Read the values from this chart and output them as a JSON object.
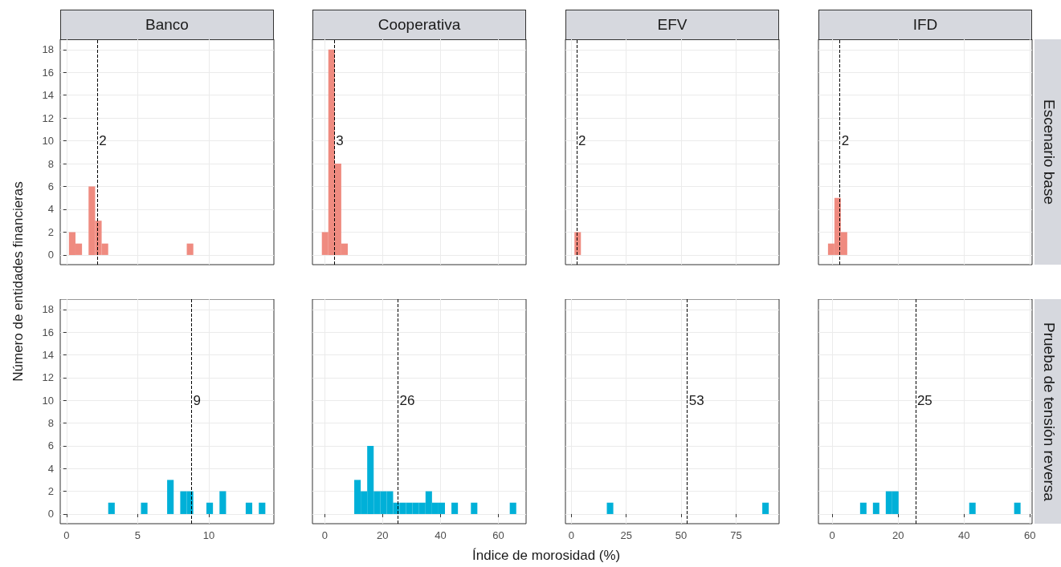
{
  "chart_data": [
    {
      "type": "histogram",
      "title": "Banco",
      "ylabel": "Número de entidades financieras",
      "color": "#ef8b80",
      "tick_labels": "y",
      "grid": true,
      "bins": [
        0.17,
        0.63,
        1.09,
        1.55,
        2.01,
        2.47,
        2.93,
        3.39,
        3.85,
        4.31,
        4.77,
        5.23,
        5.69,
        6.15,
        6.61,
        7.07,
        7.53,
        7.99,
        8.45,
        8.91,
        9.37,
        9.83,
        10.29,
        10.75,
        11.21,
        11.67,
        12.13,
        12.59,
        13.05,
        13.51,
        13.97
      ],
      "values": [
        2,
        1,
        0,
        6,
        3,
        1,
        0,
        0,
        0,
        0,
        0,
        0,
        0,
        0,
        0,
        0,
        0,
        0,
        1,
        0,
        0,
        0,
        0,
        0,
        0,
        0,
        0,
        0,
        0,
        0
      ],
      "xlim": [
        -0.44,
        14.57
      ],
      "xticks": [
        0,
        5,
        10
      ],
      "ylim": [
        -0.85,
        18.9
      ],
      "yticks": [
        0,
        2,
        4,
        6,
        8,
        10,
        12,
        14,
        16,
        18
      ],
      "ref_lines": [
        {
          "axis": "x",
          "value": 2.17,
          "line_style": "dashed",
          "color": "#000000"
        }
      ],
      "annotations": [
        {
          "text": "2",
          "x": 2.17,
          "y": 10
        }
      ]
    },
    {
      "type": "histogram",
      "title": "Cooperativa",
      "color": "#ef8b80",
      "tick_labels": false,
      "grid": true,
      "bins": [
        -1,
        1.24,
        3.48,
        5.72,
        7.96,
        10.2,
        12.44,
        14.68,
        16.92,
        19.16,
        21.4,
        23.64,
        25.88,
        28.12,
        30.36,
        32.6,
        34.84,
        37.08,
        39.32,
        41.56,
        43.8,
        46.04,
        48.28,
        50.52,
        52.76,
        55,
        57.24,
        59.48,
        61.72,
        63.96,
        66.2
      ],
      "values": [
        2,
        18,
        8,
        1,
        0,
        0,
        0,
        0,
        0,
        0,
        0,
        0,
        0,
        0,
        0,
        0,
        0,
        0,
        0,
        0,
        0,
        0,
        0,
        0,
        0,
        0,
        0,
        0,
        0,
        0
      ],
      "xlim": [
        -4.25,
        69.6
      ],
      "xticks": [
        0,
        20,
        40,
        60
      ],
      "ylim": [
        -0.85,
        18.9
      ],
      "yticks": [
        0,
        2,
        4,
        6,
        8,
        10,
        12,
        14,
        16,
        18
      ],
      "ref_lines": [
        {
          "axis": "x",
          "value": 3.3,
          "line_style": "dashed",
          "color": "#000000"
        }
      ],
      "annotations": [
        {
          "text": "3",
          "x": 3.3,
          "y": 10
        }
      ]
    },
    {
      "type": "histogram",
      "title": "EFV",
      "color": "#ef8b80",
      "tick_labels": false,
      "grid": true,
      "bins": [
        1.4,
        4.35,
        7.3,
        10.25,
        13.2,
        16.15,
        19.1,
        22.05,
        25,
        27.95,
        30.9,
        33.85,
        36.8,
        39.75,
        42.7,
        45.65,
        48.6,
        51.55,
        54.5,
        57.45,
        60.4,
        63.35,
        66.3,
        69.25,
        72.2,
        75.15,
        78.1,
        81.05,
        84,
        86.95,
        89.9
      ],
      "values": [
        2,
        0,
        0,
        0,
        0,
        0,
        0,
        0,
        0,
        0,
        0,
        0,
        0,
        0,
        0,
        0,
        0,
        0,
        0,
        0,
        0,
        0,
        0,
        0,
        0,
        0,
        0,
        0,
        0,
        0
      ],
      "xlim": [
        -2.7,
        94.6
      ],
      "xticks": [
        0,
        25,
        50,
        75
      ],
      "ylim": [
        -0.85,
        18.9
      ],
      "yticks": [
        0,
        2,
        4,
        6,
        8,
        10,
        12,
        14,
        16,
        18
      ],
      "ref_lines": [
        {
          "axis": "x",
          "value": 2.4,
          "line_style": "dashed",
          "color": "#000000"
        }
      ],
      "annotations": [
        {
          "text": "2",
          "x": 2.4,
          "y": 10
        }
      ]
    },
    {
      "type": "histogram",
      "title": "IFD",
      "y2label": "Escenario base",
      "color": "#ef8b80",
      "tick_labels": false,
      "grid": true,
      "bins": [
        -1.3,
        0.65,
        2.6,
        4.55,
        6.5,
        8.45,
        10.4,
        12.35,
        14.3,
        16.25,
        18.2,
        20.15,
        22.1,
        24.05,
        26,
        27.95,
        29.9,
        31.85,
        33.8,
        35.75,
        37.7,
        39.65,
        41.6,
        43.55,
        45.5,
        47.45,
        49.4,
        51.35,
        53.3,
        55.25,
        57.2
      ],
      "values": [
        1,
        5,
        2,
        0,
        0,
        0,
        0,
        0,
        0,
        0,
        0,
        0,
        0,
        0,
        0,
        0,
        0,
        0,
        0,
        0,
        0,
        0,
        0,
        0,
        0,
        0,
        0,
        0,
        0,
        0
      ],
      "xlim": [
        -4.2,
        60.7
      ],
      "xticks": [
        0,
        20,
        40,
        60
      ],
      "ylim": [
        -0.85,
        18.9
      ],
      "yticks": [
        0,
        2,
        4,
        6,
        8,
        10,
        12,
        14,
        16,
        18
      ],
      "ref_lines": [
        {
          "axis": "x",
          "value": 2.3,
          "line_style": "dashed",
          "color": "#000000"
        }
      ],
      "annotations": [
        {
          "text": "2",
          "x": 2.3,
          "y": 10
        }
      ]
    },
    {
      "type": "histogram",
      "color": "#00b0d8",
      "grid": true,
      "bins": [
        0.17,
        0.63,
        1.09,
        1.55,
        2.01,
        2.47,
        2.93,
        3.39,
        3.85,
        4.31,
        4.77,
        5.23,
        5.69,
        6.15,
        6.61,
        7.07,
        7.53,
        7.99,
        8.45,
        8.91,
        9.37,
        9.83,
        10.29,
        10.75,
        11.21,
        11.67,
        12.13,
        12.59,
        13.05,
        13.51,
        13.97
      ],
      "values": [
        0,
        0,
        0,
        0,
        0,
        0,
        1,
        0,
        0,
        0,
        0,
        1,
        0,
        0,
        0,
        3,
        0,
        2,
        2,
        0,
        0,
        1,
        0,
        2,
        0,
        0,
        0,
        1,
        0,
        1
      ],
      "xlim": [
        -0.44,
        14.57
      ],
      "xticks": [
        0,
        5,
        10
      ],
      "ylim": [
        -0.85,
        18.9
      ],
      "yticks": [
        0,
        2,
        4,
        6,
        8,
        10,
        12,
        14,
        16,
        18
      ],
      "ref_lines": [
        {
          "axis": "x",
          "value": 8.78,
          "line_style": "dashed",
          "color": "#000000"
        }
      ],
      "annotations": [
        {
          "text": "9",
          "x": 8.78,
          "y": 10
        }
      ]
    },
    {
      "type": "histogram",
      "xlabel": "Índice de morosidad (%)",
      "color": "#00b0d8",
      "tick_labels": "x",
      "grid": true,
      "bins": [
        -1,
        1.24,
        3.48,
        5.72,
        7.96,
        10.2,
        12.44,
        14.68,
        16.92,
        19.16,
        21.4,
        23.64,
        25.88,
        28.12,
        30.36,
        32.6,
        34.84,
        37.08,
        39.32,
        41.56,
        43.8,
        46.04,
        48.28,
        50.52,
        52.76,
        55,
        57.24,
        59.48,
        61.72,
        63.96,
        66.2
      ],
      "values": [
        0,
        0,
        0,
        0,
        0,
        3,
        2,
        6,
        2,
        2,
        2,
        1,
        1,
        1,
        1,
        1,
        2,
        1,
        1,
        0,
        1,
        0,
        0,
        1,
        0,
        0,
        0,
        0,
        0,
        1
      ],
      "xlim": [
        -4.25,
        69.6
      ],
      "xticks": [
        0,
        20,
        40,
        60
      ],
      "ylim": [
        -0.85,
        18.9
      ],
      "yticks": [
        0,
        2,
        4,
        6,
        8,
        10,
        12,
        14,
        16,
        18
      ],
      "ref_lines": [
        {
          "axis": "x",
          "value": 25.3,
          "line_style": "dashed",
          "color": "#000000"
        }
      ],
      "annotations": [
        {
          "text": "26",
          "x": 25.3,
          "y": 10
        }
      ]
    },
    {
      "type": "histogram",
      "color": "#00b0d8",
      "tick_labels": "x",
      "grid": true,
      "bins": [
        1.4,
        4.35,
        7.3,
        10.25,
        13.2,
        16.15,
        19.1,
        22.05,
        25,
        27.95,
        30.9,
        33.85,
        36.8,
        39.75,
        42.7,
        45.65,
        48.6,
        51.55,
        54.5,
        57.45,
        60.4,
        63.35,
        66.3,
        69.25,
        72.2,
        75.15,
        78.1,
        81.05,
        84,
        86.95,
        89.9
      ],
      "values": [
        0,
        0,
        0,
        0,
        0,
        1,
        0,
        0,
        0,
        0,
        0,
        0,
        0,
        0,
        0,
        0,
        0,
        0,
        0,
        0,
        0,
        0,
        0,
        0,
        0,
        0,
        0,
        0,
        0,
        1
      ],
      "xlim": [
        -2.7,
        94.6
      ],
      "xticks": [
        0,
        25,
        50,
        75
      ],
      "ylim": [
        -0.85,
        18.9
      ],
      "yticks": [
        0,
        2,
        4,
        6,
        8,
        10,
        12,
        14,
        16,
        18
      ],
      "ref_lines": [
        {
          "axis": "x",
          "value": 52.8,
          "line_style": "dashed",
          "color": "#000000"
        }
      ],
      "annotations": [
        {
          "text": "53",
          "x": 52.8,
          "y": 10
        }
      ]
    },
    {
      "type": "histogram",
      "y2label": "Prueba de tensión reversa",
      "color": "#00b0d8",
      "tick_labels": "x",
      "grid": true,
      "bins": [
        -1.3,
        0.65,
        2.6,
        4.55,
        6.5,
        8.45,
        10.4,
        12.35,
        14.3,
        16.25,
        18.2,
        20.15,
        22.1,
        24.05,
        26,
        27.95,
        29.9,
        31.85,
        33.8,
        35.75,
        37.7,
        39.65,
        41.6,
        43.55,
        45.5,
        47.45,
        49.4,
        51.35,
        53.3,
        55.25,
        57.2
      ],
      "values": [
        0,
        0,
        0,
        0,
        0,
        1,
        0,
        1,
        0,
        2,
        2,
        0,
        0,
        0,
        0,
        0,
        0,
        0,
        0,
        0,
        0,
        0,
        1,
        0,
        0,
        0,
        0,
        0,
        0,
        1
      ],
      "xlim": [
        -4.2,
        60.7
      ],
      "xticks": [
        0,
        20,
        40,
        60
      ],
      "ylim": [
        -0.85,
        18.9
      ],
      "yticks": [
        0,
        2,
        4,
        6,
        8,
        10,
        12,
        14,
        16,
        18
      ],
      "ref_lines": [
        {
          "axis": "x",
          "value": 25.3,
          "line_style": "dashed",
          "color": "#000000"
        }
      ],
      "annotations": [
        {
          "text": "25",
          "x": 25.3,
          "y": 10
        }
      ]
    }
  ]
}
